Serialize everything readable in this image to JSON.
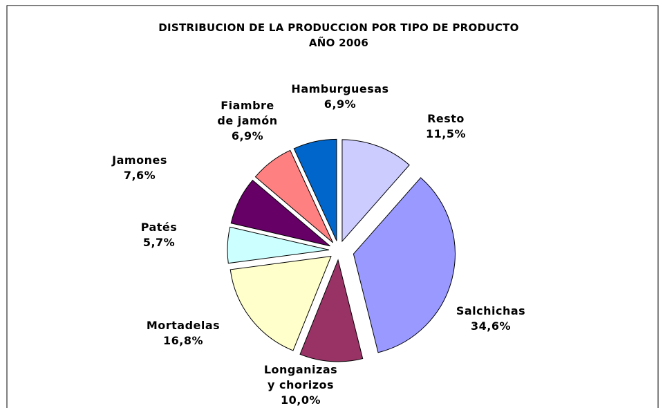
{
  "chart_data": {
    "type": "pie",
    "title": "DISTRIBUCION DE LA PRODUCCION POR TIPO DE PRODUCTO",
    "subtitle": "AÑO 2006",
    "categories": [
      "Resto",
      "Salchichas",
      "Longanizas\ny chorizos",
      "Mortadelas",
      "Patés",
      "Jamones",
      "Fiambre\nde jamón",
      "Hamburguesas"
    ],
    "values": [
      11.5,
      34.6,
      10.0,
      16.8,
      5.7,
      7.6,
      6.9,
      6.9
    ],
    "value_labels": [
      "11,5%",
      "34,6%",
      "10,0%",
      "16,8%",
      "5,7%",
      "7,6%",
      "6,9%",
      "6,9%"
    ],
    "colors": [
      "#ccccff",
      "#9999ff",
      "#993366",
      "#ffffcc",
      "#ccffff",
      "#660066",
      "#ff8080",
      "#0066cc"
    ]
  }
}
